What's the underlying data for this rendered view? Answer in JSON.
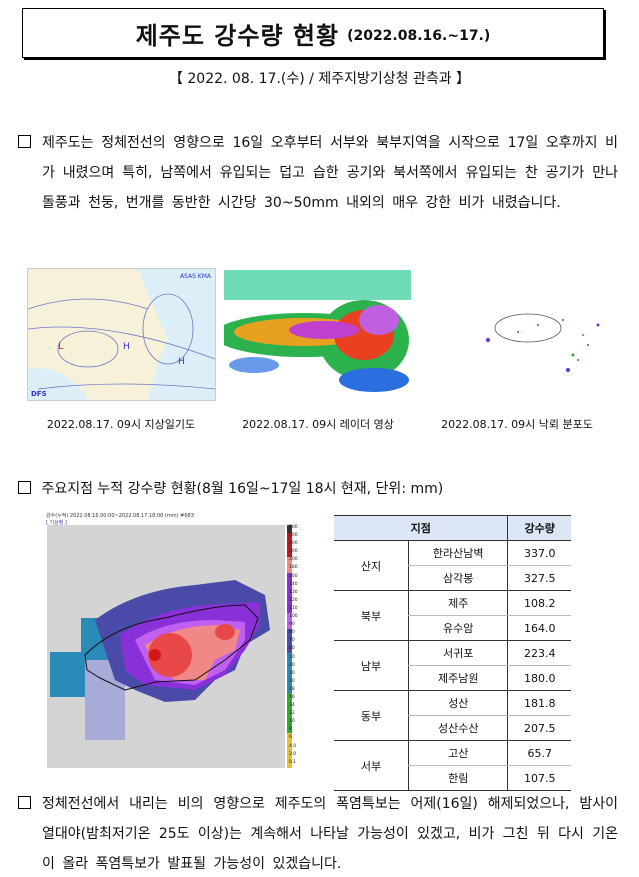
{
  "header": {
    "title": "제주도 강수량 현황",
    "title_date": "(2022.08.16.~17.)",
    "subtitle": "【 2022. 08. 17.(수) / 제주지방기상청 관측과 】"
  },
  "para1": {
    "bullet": "□",
    "text": "제주도는 정체전선의 영향으로 16일 오후부터 서부와 북부지역을 시작으로 17일 오후까지 비가 내렸으며 특히, 남쪽에서 유입되는 덥고 습한 공기와 북서쪽에서 유입되는 찬 공기가 만나 돌풍과 천둥, 번개를 동반한 시간당 30~50mm 내외의 매우 강한 비가 내렸습니다."
  },
  "figures": [
    {
      "caption": "2022.08.17. 09시 지상일기도",
      "logo": "ASAS KMA",
      "label": "DFS"
    },
    {
      "caption": "2022.08.17. 09시 레이더 영상"
    },
    {
      "caption": "2022.08.17. 09시 낙뢰 분포도"
    }
  ],
  "section2": {
    "bullet": "□",
    "text": "주요지점 누적 강수량 현황(8월 16일~17일 18시 현재, 단위: mm)"
  },
  "rain_map": {
    "header": "강수(누적) 2022.08.16.00:00~2022.08.17.18:00 (mm) #683",
    "source": "[ 기상청 ]",
    "legend": [
      "700",
      "500",
      "400",
      "300",
      "200",
      "180",
      "160",
      "140",
      "130",
      "120",
      "110",
      "100",
      "90",
      "80",
      "70",
      "60",
      "50",
      "40",
      "30",
      "20",
      "18",
      "16",
      "14",
      "12",
      "10",
      "8",
      "6",
      "4.0",
      "2.0",
      "0.1"
    ]
  },
  "table": {
    "headers": [
      "지점",
      "강수량"
    ],
    "groups": [
      {
        "region": "산지",
        "rows": [
          {
            "station": "한라산남벽",
            "value": "337.0"
          },
          {
            "station": "삼각봉",
            "value": "327.5"
          }
        ]
      },
      {
        "region": "북부",
        "rows": [
          {
            "station": "제주",
            "value": "108.2"
          },
          {
            "station": "유수암",
            "value": "164.0"
          }
        ]
      },
      {
        "region": "남부",
        "rows": [
          {
            "station": "서귀포",
            "value": "223.4"
          },
          {
            "station": "제주남원",
            "value": "180.0"
          }
        ]
      },
      {
        "region": "동부",
        "rows": [
          {
            "station": "성산",
            "value": "181.8"
          },
          {
            "station": "성산수산",
            "value": "207.5"
          }
        ]
      },
      {
        "region": "서부",
        "rows": [
          {
            "station": "고산",
            "value": "65.7"
          },
          {
            "station": "한림",
            "value": "107.5"
          }
        ]
      }
    ]
  },
  "para3": {
    "bullet": "□",
    "text": "정체전선에서 내리는 비의 영향으로 제주도의 폭염특보는 어제(16일) 해제되었으나, 밤사이 열대야(밤최저기온 25도 이상)는 계속해서 나타날 가능성이 있겠고, 비가 그친 뒤 다시 기온이 올라 폭염특보가 발표될 가능성이 있겠습니다."
  }
}
